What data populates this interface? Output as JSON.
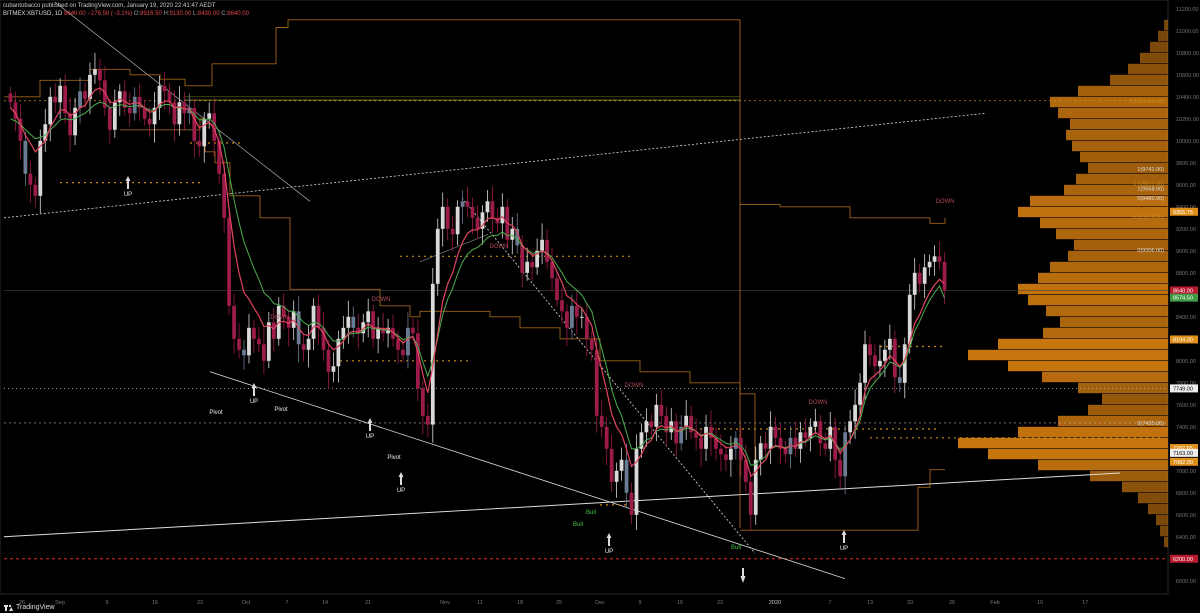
{
  "header": {
    "publisher_line": "cubantobacco published on TradingView.com, January 19, 2020 22:41:47 AEDT",
    "symbol": "BITMEX:XBTUSD, 1D",
    "last": "8640.00",
    "change": "−276.50 (−3.1%)",
    "o_label": "O:",
    "o": "8916.50",
    "h_label": "H:",
    "h": "9130.00",
    "l_label": "L:",
    "l": "8430.00",
    "c_label": "C:",
    "c": "8640.00"
  },
  "footer": {
    "brand": "TradingView"
  },
  "colors": {
    "up": "#d9d9d9",
    "down": "#9b1b4a",
    "neutral": "#6c7b94",
    "ema_fast": "#e0465f",
    "ema_slow": "#4caf50",
    "profile": "#d17b10",
    "level": "#b87520",
    "fib": "#c98a1a",
    "support": "#ff3333"
  },
  "chart_data": {
    "type": "candlestick",
    "x_ticks": [
      "26",
      "Sep",
      "9",
      "16",
      "23",
      "Oct",
      "7",
      "14",
      "21",
      "Nov",
      "11",
      "18",
      "25",
      "Dec",
      "9",
      "16",
      "23",
      "2020",
      "7",
      "13",
      "20",
      "26",
      "Feb",
      "10",
      "17"
    ],
    "y_ticks": [
      "11200.00",
      "11000.00",
      "10800.00",
      "10600.00",
      "10400.00",
      "10200.00",
      "10000.00",
      "9800.00",
      "9600.00",
      "9400.00",
      "9200.00",
      "9000.00",
      "8800.00",
      "8600.00",
      "8400.00",
      "8200.00",
      "8000.00",
      "7800.00",
      "7600.00",
      "7400.00",
      "7200.00",
      "7000.00",
      "6800.00",
      "6600.00",
      "6400.00",
      "6200.00",
      "6000.00"
    ],
    "ylim": [
      5880,
      11280
    ],
    "price_tags": [
      {
        "label": "9355.75",
        "value": 9355,
        "kind": "profile"
      },
      {
        "label": "8640.00",
        "value": 8640,
        "kind": "last"
      },
      {
        "label": "8574.50",
        "value": 8574,
        "kind": "ema"
      },
      {
        "label": "8194.00",
        "value": 8194,
        "kind": "profile"
      },
      {
        "label": "7749.00",
        "value": 7749,
        "kind": "white"
      },
      {
        "label": "7207.65",
        "value": 7207,
        "kind": "profile"
      },
      {
        "label": "7163.00",
        "value": 7163,
        "kind": "white"
      },
      {
        "label": "7082.00",
        "value": 7082,
        "kind": "profile"
      },
      {
        "label": "6200.00",
        "value": 6200,
        "kind": "support"
      }
    ],
    "fib_labels": [
      {
        "text": "0.5(10364.00)",
        "value": 10364
      },
      {
        "text": "1(9742.00)",
        "value": 9742
      },
      {
        "text": "0.5(9611.00)",
        "value": 9611
      },
      {
        "text": "1(9568.00)",
        "value": 9568
      },
      {
        "text": "0(9480.00)",
        "value": 9480
      },
      {
        "text": "0.5(9314.00)",
        "value": 9314
      },
      {
        "text": "0(9006.00)",
        "value": 9006
      },
      {
        "text": "0(7435.00)",
        "value": 7435
      }
    ],
    "annotations": [
      {
        "text": "UP",
        "kind": "up",
        "x": 128,
        "y": 196
      },
      {
        "text": "Pivot",
        "kind": "pivot",
        "x": 216,
        "y": 414
      },
      {
        "text": "UP",
        "kind": "up",
        "x": 254,
        "y": 403
      },
      {
        "text": "Pivot",
        "kind": "pivot",
        "x": 281,
        "y": 411
      },
      {
        "text": "UP",
        "kind": "up",
        "x": 370,
        "y": 438
      },
      {
        "text": "Pivot",
        "kind": "pivot",
        "x": 394,
        "y": 459
      },
      {
        "text": "UP",
        "kind": "up",
        "x": 401,
        "y": 492
      },
      {
        "text": "DOWN",
        "kind": "down",
        "x": 280,
        "y": 319
      },
      {
        "text": "DOWN",
        "kind": "down",
        "x": 381,
        "y": 301
      },
      {
        "text": "DOWN",
        "kind": "down",
        "x": 499,
        "y": 248
      },
      {
        "text": "DOWN",
        "kind": "down",
        "x": 634,
        "y": 387
      },
      {
        "text": "DOWN",
        "kind": "down",
        "x": 818,
        "y": 404
      },
      {
        "text": "DOWN",
        "kind": "down",
        "x": 945,
        "y": 203
      },
      {
        "text": "Bull",
        "kind": "bull",
        "x": 578,
        "y": 526
      },
      {
        "text": "Bull",
        "kind": "bull",
        "x": 591,
        "y": 514
      },
      {
        "text": "UP",
        "kind": "up",
        "x": 609,
        "y": 553
      },
      {
        "text": "Bull",
        "kind": "bull",
        "x": 736,
        "y": 549
      },
      {
        "text": "UP",
        "kind": "up",
        "x": 844,
        "y": 550
      }
    ],
    "closes": [
      10350,
      10200,
      10000,
      9700,
      9600,
      9500,
      10000,
      10150,
      10400,
      10350,
      10500,
      10250,
      10050,
      10300,
      10450,
      10380,
      10600,
      10650,
      10550,
      10300,
      10100,
      10350,
      10450,
      10300,
      10250,
      10400,
      10300,
      10200,
      10150,
      10300,
      10500,
      10450,
      10350,
      10150,
      10350,
      10250,
      10300,
      10000,
      9950,
      10200,
      10250,
      10000,
      9700,
      9300,
      8500,
      8200,
      8100,
      8050,
      8300,
      8200,
      8150,
      8000,
      8350,
      8200,
      8500,
      8400,
      8300,
      8450,
      8150,
      8100,
      8200,
      8500,
      8300,
      8100,
      7900,
      7950,
      8200,
      8300,
      8400,
      8300,
      8250,
      8350,
      8450,
      8200,
      8300,
      8250,
      8300,
      8200,
      8100,
      8050,
      8300,
      8250,
      7750,
      7500,
      7420,
      8700,
      9200,
      9400,
      9200,
      9150,
      9400,
      9450,
      9400,
      9300,
      9200,
      9350,
      9450,
      9300,
      9250,
      9400,
      9100,
      9200,
      9050,
      8800,
      8900,
      8850,
      9000,
      9100,
      8900,
      8750,
      8550,
      8450,
      8300,
      8500,
      8400,
      8400,
      8200,
      8100,
      7500,
      7400,
      7200,
      6900,
      7000,
      7100,
      6800,
      6600,
      7200,
      7350,
      7450,
      7400,
      7600,
      7500,
      7350,
      7450,
      7250,
      7400,
      7500,
      7350,
      7300,
      7200,
      7400,
      7300,
      7200,
      7150,
      7100,
      7200,
      7300,
      7100,
      6900,
      6600,
      7100,
      7250,
      7200,
      7400,
      7300,
      7200,
      7150,
      7300,
      7200,
      7350,
      7300,
      7400,
      7450,
      7250,
      7200,
      7400,
      7100,
      6950,
      7350,
      7450,
      7600,
      7800,
      8150,
      8050,
      7950,
      8000,
      8100,
      8200,
      7850,
      7800,
      8150,
      8600,
      8800,
      8700,
      8850,
      8900,
      8950,
      8900,
      8640
    ],
    "ema_fast": [
      10300,
      10250,
      10150,
      10050,
      9980,
      9900,
      9950,
      10000,
      10120,
      10200,
      10280,
      10280,
      10230,
      10250,
      10300,
      10320,
      10400,
      10460,
      10480,
      10440,
      10350,
      10350,
      10380,
      10360,
      10330,
      10350,
      10340,
      10300,
      10260,
      10270,
      10330,
      10360,
      10360,
      10300,
      10310,
      10290,
      10290,
      10200,
      10120,
      10140,
      10170,
      10110,
      9980,
      9760,
      9380,
      9040,
      8800,
      8620,
      8560,
      8480,
      8410,
      8310,
      8320,
      8290,
      8350,
      8360,
      8340,
      8370,
      8300,
      8240,
      8230,
      8310,
      8310,
      8250,
      8150,
      8100,
      8130,
      8180,
      8250,
      8270,
      8260,
      8290,
      8340,
      8300,
      8300,
      8290,
      8290,
      8260,
      8210,
      8160,
      8200,
      8220,
      8080,
      7880,
      7710,
      7950,
      8250,
      8540,
      8700,
      8800,
      8960,
      9080,
      9160,
      9190,
      9190,
      9230,
      9290,
      9300,
      9280,
      9310,
      9250,
      9230,
      9170,
      9050,
      9000,
      8960,
      8970,
      9000,
      8970,
      8910,
      8810,
      8710,
      8590,
      8560,
      8510,
      8480,
      8400,
      8320,
      8100,
      7920,
      7730,
      7520,
      7400,
      7330,
      7200,
      7040,
      7080,
      7150,
      7240,
      7280,
      7380,
      7410,
      7390,
      7410,
      7360,
      7370,
      7410,
      7390,
      7360,
      7310,
      7340,
      7330,
      7290,
      7250,
      7210,
      7210,
      7240,
      7200,
      7110,
      6950,
      6990,
      7060,
      7100,
      7200,
      7230,
      7220,
      7200,
      7230,
      7220,
      7260,
      7270,
      7310,
      7350,
      7320,
      7290,
      7320,
      7250,
      7160,
      7220,
      7280,
      7380,
      7500,
      7720,
      7830,
      7870,
      7910,
      7970,
      8050,
      8000,
      7950,
      8010,
      8170,
      8340,
      8420,
      8530,
      8620,
      8690,
      8740,
      8700
    ],
    "ema_slow": [
      10200,
      10180,
      10150,
      10100,
      10060,
      10020,
      10030,
      10050,
      10100,
      10140,
      10190,
      10200,
      10190,
      10200,
      10230,
      10250,
      10290,
      10330,
      10350,
      10340,
      10300,
      10310,
      10330,
      10320,
      10310,
      10320,
      10320,
      10300,
      10280,
      10280,
      10310,
      10330,
      10330,
      10300,
      10300,
      10290,
      10290,
      10240,
      10190,
      10190,
      10200,
      10160,
      10080,
      9940,
      9700,
      9460,
      9260,
      9080,
      8960,
      8840,
      8740,
      8620,
      8580,
      8520,
      8510,
      8490,
      8450,
      8450,
      8400,
      8350,
      8320,
      8350,
      8340,
      8300,
      8230,
      8180,
      8180,
      8200,
      8240,
      8250,
      8250,
      8270,
      8310,
      8290,
      8290,
      8280,
      8280,
      8260,
      8230,
      8190,
      8210,
      8220,
      8130,
      7990,
      7860,
      8000,
      8210,
      8420,
      8560,
      8660,
      8790,
      8900,
      8970,
      9010,
      9030,
      9070,
      9120,
      9140,
      9140,
      9170,
      9140,
      9140,
      9110,
      9040,
      9010,
      8980,
      8980,
      9000,
      8980,
      8940,
      8870,
      8800,
      8720,
      8680,
      8640,
      8600,
      8520,
      8450,
      8270,
      8110,
      7940,
      7740,
      7600,
      7500,
      7350,
      7200,
      7200,
      7230,
      7280,
      7300,
      7360,
      7380,
      7370,
      7390,
      7360,
      7360,
      7390,
      7380,
      7360,
      7320,
      7340,
      7340,
      7310,
      7280,
      7250,
      7240,
      7260,
      7230,
      7170,
      7050,
      7060,
      7100,
      7130,
      7200,
      7220,
      7220,
      7210,
      7230,
      7220,
      7250,
      7260,
      7290,
      7320,
      7300,
      7280,
      7300,
      7250,
      7190,
      7230,
      7280,
      7360,
      7460,
      7640,
      7750,
      7810,
      7860,
      7920,
      7990,
      7970,
      7940,
      7990,
      8120,
      8270,
      8360,
      8460,
      8550,
      8620,
      8680,
      8570
    ]
  }
}
